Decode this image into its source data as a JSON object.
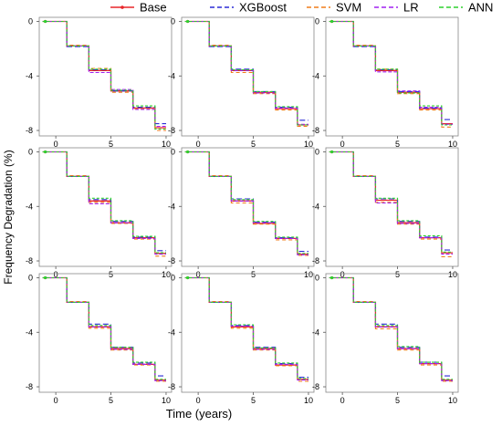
{
  "legend": [
    "Base",
    "XGBoost",
    "SVM",
    "LR",
    "ANN"
  ],
  "colors": {
    "Base": "#e8262a",
    "XGBoost": "#2b2bd6",
    "SVM": "#f07d1a",
    "LR": "#a020f0",
    "ANN": "#2ed12e"
  },
  "x_axis_title": "Time (years)",
  "y_axis_title": "Frequency Degradation (%)",
  "chart_data": {
    "type": "line",
    "layout": "3x3 grid of subplots sharing axes",
    "xlabel": "Time (years)",
    "ylabel": "Frequency Degradation (%)",
    "xlim": [
      -1.5,
      10.5
    ],
    "ylim": [
      -8.4,
      0.3
    ],
    "xticks": [
      0,
      5,
      10
    ],
    "yticks": [
      0,
      -4,
      -8
    ],
    "ytick_labels": [
      "0",
      "-4",
      "-8"
    ],
    "legend_position": "top",
    "grid": false,
    "step_times": [
      -1.2,
      1.0,
      3.0,
      5.0,
      7.0,
      9.0,
      10.0
    ],
    "base_levels": [
      0,
      -1.8,
      -3.6,
      -5.15,
      -6.35,
      -7.55
    ],
    "series": [
      {
        "name": "Base",
        "style": "solid"
      },
      {
        "name": "XGBoost",
        "style": "dashed"
      },
      {
        "name": "SVM",
        "style": "dashed"
      },
      {
        "name": "LR",
        "style": "dashed"
      },
      {
        "name": "ANN",
        "style": "dashed"
      }
    ],
    "panels": [
      {
        "Base": [
          0,
          -1.8,
          -3.6,
          -5.1,
          -6.35,
          -7.8
        ],
        "XGBoost": [
          0,
          -1.85,
          -3.55,
          -5.1,
          -6.3,
          -7.5
        ],
        "SVM": [
          0,
          -1.75,
          -3.45,
          -5.2,
          -6.4,
          -8.0
        ],
        "LR": [
          0,
          -1.8,
          -3.75,
          -5.0,
          -6.45,
          -7.7
        ],
        "ANN": [
          0,
          -1.8,
          -3.5,
          -5.05,
          -6.2,
          -7.9
        ]
      },
      {
        "Base": [
          0,
          -1.8,
          -3.6,
          -5.2,
          -6.4,
          -7.6
        ],
        "XGBoost": [
          0,
          -1.85,
          -3.5,
          -5.15,
          -6.3,
          -7.25
        ],
        "SVM": [
          0,
          -1.75,
          -3.75,
          -5.3,
          -6.5,
          -7.7
        ],
        "LR": [
          0,
          -1.8,
          -3.6,
          -5.25,
          -6.35,
          -7.55
        ],
        "ANN": [
          0,
          -1.8,
          -3.55,
          -5.15,
          -6.25,
          -7.6
        ]
      },
      {
        "Base": [
          0,
          -1.8,
          -3.6,
          -5.2,
          -6.4,
          -7.5
        ],
        "XGBoost": [
          0,
          -1.85,
          -3.55,
          -5.15,
          -6.35,
          -7.2
        ],
        "SVM": [
          0,
          -1.75,
          -3.5,
          -5.3,
          -6.5,
          -7.75
        ],
        "LR": [
          0,
          -1.8,
          -3.7,
          -5.1,
          -6.3,
          -7.55
        ],
        "ANN": [
          0,
          -1.8,
          -3.5,
          -5.25,
          -6.2,
          -7.6
        ]
      },
      {
        "Base": [
          0,
          -1.8,
          -3.6,
          -5.2,
          -6.3,
          -7.45
        ],
        "XGBoost": [
          0,
          -1.8,
          -3.5,
          -5.1,
          -6.25,
          -7.25
        ],
        "SVM": [
          0,
          -1.75,
          -3.7,
          -5.25,
          -6.4,
          -7.65
        ],
        "LR": [
          0,
          -1.8,
          -3.8,
          -5.2,
          -6.35,
          -7.5
        ],
        "ANN": [
          0,
          -1.8,
          -3.4,
          -5.05,
          -6.2,
          -7.4
        ]
      },
      {
        "Base": [
          0,
          -1.8,
          -3.6,
          -5.25,
          -6.35,
          -7.5
        ],
        "XGBoost": [
          0,
          -1.8,
          -3.45,
          -5.15,
          -6.3,
          -7.3
        ],
        "SVM": [
          0,
          -1.75,
          -3.75,
          -5.3,
          -6.45,
          -7.6
        ],
        "LR": [
          0,
          -1.8,
          -3.6,
          -5.2,
          -6.35,
          -7.55
        ],
        "ANN": [
          0,
          -1.8,
          -3.5,
          -5.1,
          -6.25,
          -7.45
        ]
      },
      {
        "Base": [
          0,
          -1.8,
          -3.55,
          -5.2,
          -6.3,
          -7.4
        ],
        "XGBoost": [
          0,
          -1.8,
          -3.45,
          -5.1,
          -6.25,
          -7.2
        ],
        "SVM": [
          0,
          -1.75,
          -3.7,
          -5.3,
          -6.4,
          -7.7
        ],
        "LR": [
          0,
          -1.8,
          -3.75,
          -5.25,
          -6.3,
          -7.5
        ],
        "ANN": [
          0,
          -1.8,
          -3.4,
          -5.05,
          -6.15,
          -7.35
        ]
      },
      {
        "Base": [
          0,
          -1.8,
          -3.6,
          -5.2,
          -6.35,
          -7.5
        ],
        "XGBoost": [
          0,
          -1.8,
          -3.4,
          -5.1,
          -6.25,
          -7.2
        ],
        "SVM": [
          0,
          -1.75,
          -3.7,
          -5.3,
          -6.4,
          -7.6
        ],
        "LR": [
          0,
          -1.8,
          -3.6,
          -5.25,
          -6.35,
          -7.55
        ],
        "ANN": [
          0,
          -1.8,
          -3.5,
          -5.1,
          -6.2,
          -7.45
        ]
      },
      {
        "Base": [
          0,
          -1.8,
          -3.6,
          -5.2,
          -6.4,
          -7.45
        ],
        "XGBoost": [
          0,
          -1.8,
          -3.5,
          -5.1,
          -6.3,
          -7.3
        ],
        "SVM": [
          0,
          -1.75,
          -3.7,
          -5.3,
          -6.45,
          -7.6
        ],
        "LR": [
          0,
          -1.8,
          -3.55,
          -5.25,
          -6.35,
          -7.5
        ],
        "ANN": [
          0,
          -1.8,
          -3.45,
          -5.15,
          -6.25,
          -7.4
        ]
      },
      {
        "Base": [
          0,
          -1.8,
          -3.6,
          -5.2,
          -6.3,
          -7.5
        ],
        "XGBoost": [
          0,
          -1.8,
          -3.4,
          -5.1,
          -6.2,
          -7.2
        ],
        "SVM": [
          0,
          -1.75,
          -3.75,
          -5.3,
          -6.4,
          -7.6
        ],
        "LR": [
          0,
          -1.8,
          -3.6,
          -5.2,
          -6.3,
          -7.55
        ],
        "ANN": [
          0,
          -1.8,
          -3.5,
          -5.05,
          -6.2,
          -7.45
        ]
      }
    ]
  }
}
